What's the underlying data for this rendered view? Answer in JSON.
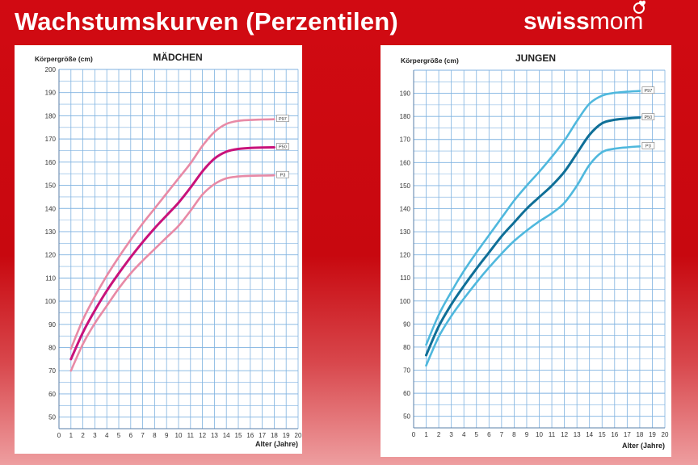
{
  "header": {
    "title": "Wachstumskurven (Perzentilen)",
    "brand_bold": "swiss",
    "brand_light": "mom"
  },
  "colors": {
    "background": "#c8080f",
    "grid": "#7fb2e0",
    "girls_outer": "#e88aa6",
    "girls_median": "#c8127a",
    "boys_outer": "#4fb8dd",
    "boys_median": "#0f6f97"
  },
  "chart_data": [
    {
      "type": "line",
      "title": "MÄDCHEN",
      "ylabel": "Körpergröße (cm)",
      "xlabel": "Alter (Jahre)",
      "xlim": [
        0,
        20
      ],
      "ylim": [
        45,
        200
      ],
      "xticks": [
        0,
        1,
        2,
        3,
        4,
        5,
        6,
        7,
        8,
        9,
        10,
        11,
        12,
        13,
        14,
        15,
        16,
        17,
        18,
        19,
        20
      ],
      "yticks": [
        50,
        60,
        70,
        80,
        90,
        100,
        110,
        120,
        130,
        140,
        150,
        160,
        170,
        180,
        190,
        200
      ],
      "grid": true,
      "x": [
        1,
        2,
        3,
        4,
        5,
        6,
        7,
        8,
        9,
        10,
        11,
        12,
        13,
        14,
        15,
        16,
        17,
        18
      ],
      "series": [
        {
          "name": "P97",
          "color": "#e88aa6",
          "values": [
            79.5,
            92,
            102,
            111,
            119,
            126.5,
            133.5,
            140,
            146.5,
            153,
            159.5,
            167,
            173,
            176.5,
            177.8,
            178.2,
            178.4,
            178.5
          ]
        },
        {
          "name": "P50",
          "color": "#c8127a",
          "values": [
            75,
            86.5,
            96,
            104.5,
            112,
            119,
            125.5,
            131.5,
            137,
            142.5,
            149,
            156,
            161.5,
            164.5,
            165.7,
            166.1,
            166.3,
            166.4
          ]
        },
        {
          "name": "P3",
          "color": "#e88aa6",
          "values": [
            70,
            81.5,
            90.5,
            98,
            105.5,
            112,
            117.5,
            122.5,
            127.5,
            132.5,
            139,
            146,
            150.5,
            153,
            153.8,
            154.1,
            154.2,
            154.3
          ]
        }
      ]
    },
    {
      "type": "line",
      "title": "JUNGEN",
      "ylabel": "Körpergröße (cm)",
      "xlabel": "Alter (Jahre)",
      "xlim": [
        0,
        20
      ],
      "ylim": [
        45,
        200
      ],
      "xticks": [
        0,
        1,
        2,
        3,
        4,
        5,
        6,
        7,
        8,
        9,
        10,
        11,
        12,
        13,
        14,
        15,
        16,
        17,
        18,
        19,
        20
      ],
      "yticks": [
        50,
        60,
        70,
        80,
        90,
        100,
        110,
        120,
        130,
        140,
        150,
        160,
        170,
        180,
        190
      ],
      "grid": true,
      "x": [
        1,
        2,
        3,
        4,
        5,
        6,
        7,
        8,
        9,
        10,
        11,
        12,
        13,
        14,
        15,
        16,
        17,
        18
      ],
      "series": [
        {
          "name": "P97",
          "color": "#4fb8dd",
          "values": [
            81,
            94,
            104,
            113,
            121,
            128.5,
            136,
            143.5,
            150,
            156,
            162.5,
            169.5,
            178,
            185.5,
            189,
            190.2,
            190.7,
            191
          ]
        },
        {
          "name": "P50",
          "color": "#0f6f97",
          "values": [
            76.5,
            89,
            98.5,
            106.5,
            114,
            121,
            128,
            134,
            140,
            145,
            150,
            156,
            164,
            172,
            177,
            178.5,
            179.1,
            179.5
          ]
        },
        {
          "name": "P3",
          "color": "#4fb8dd",
          "values": [
            72,
            84.5,
            93.5,
            101,
            108,
            114.5,
            120.5,
            126,
            130.5,
            134.5,
            138,
            142.5,
            150,
            159,
            164.5,
            166,
            166.6,
            167
          ]
        }
      ]
    }
  ]
}
